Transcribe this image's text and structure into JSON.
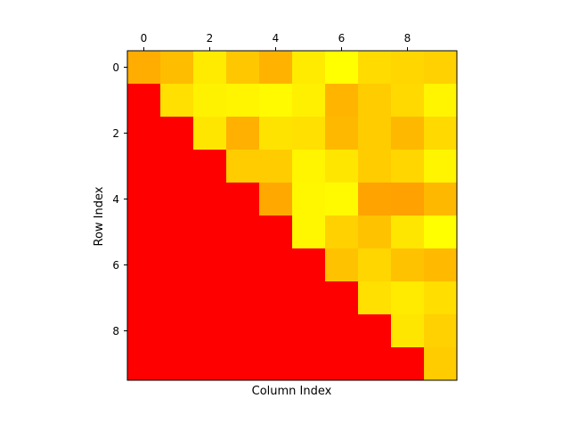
{
  "chart_data": {
    "type": "heatmap",
    "title": "",
    "xlabel": "Column Index",
    "ylabel": "Row Index",
    "colormap": "autumn",
    "x_tick_position": "top",
    "x_ticks": [
      0,
      2,
      4,
      6,
      8
    ],
    "y_ticks": [
      0,
      2,
      4,
      6,
      8
    ],
    "xlim": [
      -0.5,
      9.5
    ],
    "ylim": [
      9.5,
      -0.5
    ],
    "grid": false,
    "colorbar": false,
    "mask": "lower triangle (column < row) shown in solid red",
    "rows": 10,
    "cols": 10,
    "values": [
      [
        0.68,
        0.74,
        0.92,
        0.78,
        0.7,
        0.92,
        1.0,
        0.86,
        0.84,
        0.82
      ],
      [
        0.0,
        0.88,
        0.95,
        0.96,
        0.98,
        0.94,
        0.71,
        0.8,
        0.85,
        0.96
      ],
      [
        0.0,
        0.0,
        0.9,
        0.69,
        0.89,
        0.88,
        0.72,
        0.8,
        0.72,
        0.85
      ],
      [
        0.0,
        0.0,
        0.0,
        0.8,
        0.8,
        0.96,
        0.9,
        0.8,
        0.84,
        0.96
      ],
      [
        0.0,
        0.0,
        0.0,
        0.0,
        0.66,
        0.97,
        0.98,
        0.64,
        0.63,
        0.72
      ],
      [
        0.0,
        0.0,
        0.0,
        0.0,
        0.0,
        0.97,
        0.82,
        0.76,
        0.9,
        1.0
      ],
      [
        0.0,
        0.0,
        0.0,
        0.0,
        0.0,
        0.0,
        0.76,
        0.84,
        0.76,
        0.73
      ],
      [
        0.0,
        0.0,
        0.0,
        0.0,
        0.0,
        0.0,
        0.0,
        0.88,
        0.92,
        0.87
      ],
      [
        0.0,
        0.0,
        0.0,
        0.0,
        0.0,
        0.0,
        0.0,
        0.0,
        0.9,
        0.82
      ],
      [
        0.0,
        0.0,
        0.0,
        0.0,
        0.0,
        0.0,
        0.0,
        0.0,
        0.0,
        0.8
      ]
    ]
  }
}
